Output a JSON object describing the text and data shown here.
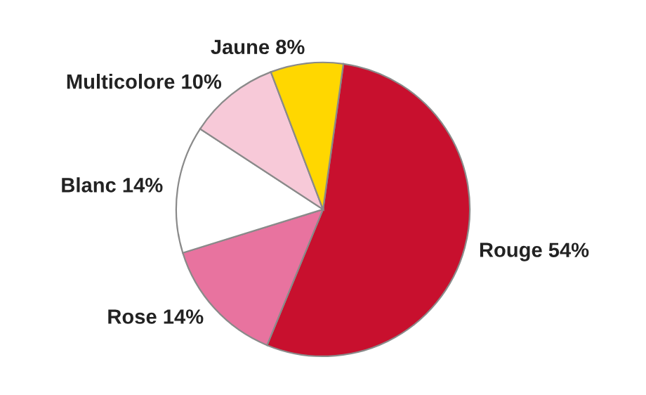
{
  "chart_data": {
    "type": "pie",
    "categories": [
      "Rouge",
      "Rose",
      "Blanc",
      "Multicolore",
      "Jaune"
    ],
    "values": [
      54,
      14,
      14,
      10,
      8
    ],
    "value_labels": [
      "54%",
      "14%",
      "14%",
      "10%",
      "8%"
    ],
    "colors": [
      "#c8102e",
      "#e8739f",
      "#ffffff",
      "#f7c9d8",
      "#ffd700"
    ],
    "legend": false
  }
}
